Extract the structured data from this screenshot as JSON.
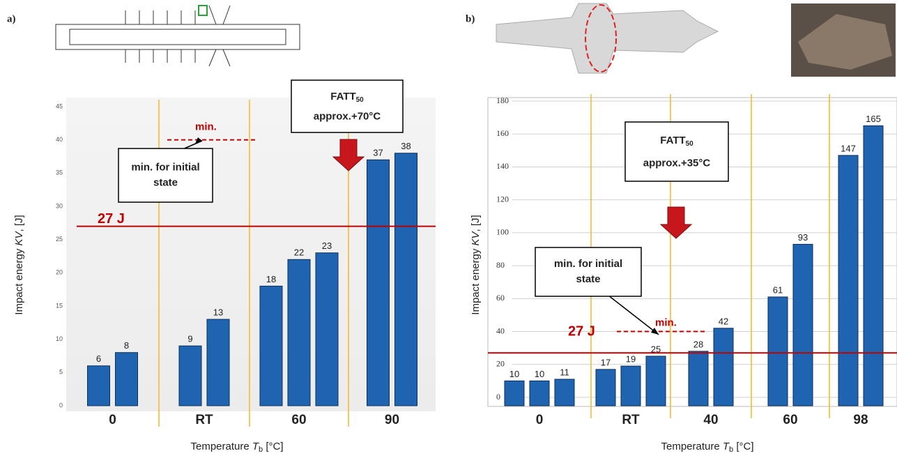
{
  "chart_data": [
    {
      "type": "bar",
      "panel_label": "a)",
      "y_label": [
        "Impact energy ",
        "KV",
        ", [J]"
      ],
      "x_label": [
        "Temperature ",
        "T",
        "b",
        " [°C]"
      ],
      "ylim": [
        0,
        45
      ],
      "yticks": [
        0,
        5,
        10,
        15,
        20,
        25,
        30,
        35,
        40,
        45
      ],
      "grid": false,
      "color": "#1f64b0",
      "groups": [
        {
          "name": "0",
          "values": [
            6,
            8
          ]
        },
        {
          "name": "RT",
          "values": [
            9,
            13
          ]
        },
        {
          "name": "60",
          "values": [
            18,
            22,
            23
          ]
        },
        {
          "name": "90",
          "values": [
            37,
            38
          ]
        }
      ],
      "reference_lines": [
        {
          "value": 27,
          "label": "27 J",
          "color": "#c00000",
          "style": "solid"
        },
        {
          "value": 40,
          "label": "min.",
          "color": "#c00000",
          "style": "dashed"
        }
      ],
      "note_box": [
        "min. for initial",
        "state"
      ],
      "fatt_box": {
        "label": [
          "FATT",
          "50"
        ],
        "text": "approx.+70°C"
      }
    },
    {
      "type": "bar",
      "panel_label": "b)",
      "y_label": [
        "Impact energy ",
        "KV",
        ", [J]"
      ],
      "x_label": [
        "Temperature ",
        "T",
        "b",
        " [°C]"
      ],
      "ylim": [
        0,
        180
      ],
      "yticks": [
        0,
        20,
        40,
        60,
        80,
        100,
        120,
        140,
        160,
        180
      ],
      "grid": true,
      "color": "#1f64b0",
      "groups": [
        {
          "name": "0",
          "values": [
            10,
            10,
            11
          ]
        },
        {
          "name": "RT",
          "values": [
            17,
            19,
            25
          ]
        },
        {
          "name": "40",
          "values": [
            28,
            42
          ]
        },
        {
          "name": "60",
          "values": [
            61,
            93
          ]
        },
        {
          "name": "98",
          "values": [
            147,
            165
          ]
        }
      ],
      "reference_lines": [
        {
          "value": 27,
          "label": "27 J",
          "color": "#c00000",
          "style": "solid"
        },
        {
          "value": 40,
          "label": "min.",
          "color": "#c00000",
          "style": "dashed"
        }
      ],
      "note_box": [
        "min. for initial",
        "state"
      ],
      "fatt_box": {
        "label": [
          "FATT",
          "50"
        ],
        "text": "approx.+35°C"
      }
    }
  ]
}
